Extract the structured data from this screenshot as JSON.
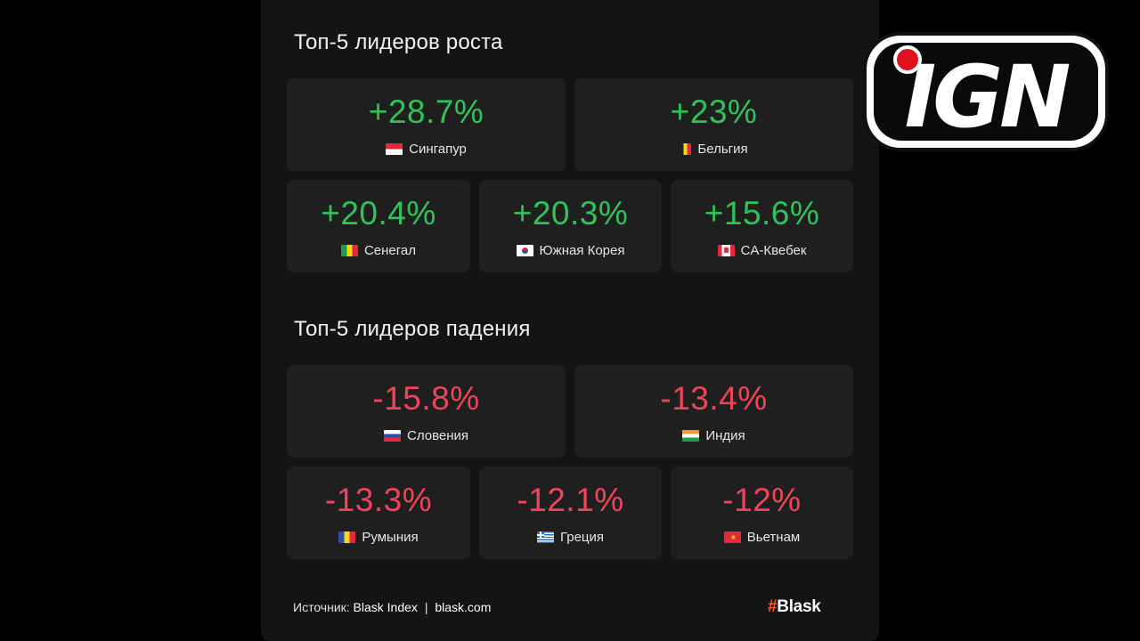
{
  "growth": {
    "title": "Топ-5 лидеров роста",
    "items": [
      {
        "value": "+28.7%",
        "country": "Сингапур",
        "flag": "singapore-flag"
      },
      {
        "value": "+23%",
        "country": "Бельгия",
        "flag": "belgium-flag"
      },
      {
        "value": "+20.4%",
        "country": "Сенегал",
        "flag": "senegal-flag"
      },
      {
        "value": "+20.3%",
        "country": "Южная Корея",
        "flag": "south-korea-flag"
      },
      {
        "value": "+15.6%",
        "country": "CA-Квебек",
        "flag": "canada-flag"
      }
    ]
  },
  "decline": {
    "title": "Топ-5 лидеров падения",
    "items": [
      {
        "value": "-15.8%",
        "country": "Словения",
        "flag": "slovenia-flag"
      },
      {
        "value": "-13.4%",
        "country": "Индия",
        "flag": "india-flag"
      },
      {
        "value": "-13.3%",
        "country": "Румыния",
        "flag": "romania-flag"
      },
      {
        "value": "-12.1%",
        "country": "Греция",
        "flag": "greece-flag"
      },
      {
        "value": "-12%",
        "country": "Вьетнам",
        "flag": "vietnam-flag"
      }
    ]
  },
  "footer": {
    "source_label": "Источник:",
    "source_name": "Blask Index",
    "separator": "|",
    "site": "blask.com",
    "brand_hash": "#",
    "brand_name": "Blask"
  },
  "watermark": {
    "logo": "IGN"
  },
  "colors": {
    "positive": "#2fc45a",
    "negative": "#ef4458",
    "card": "#1f1f1f",
    "panel": "#141414",
    "brand_accent": "#ff5a1f"
  }
}
